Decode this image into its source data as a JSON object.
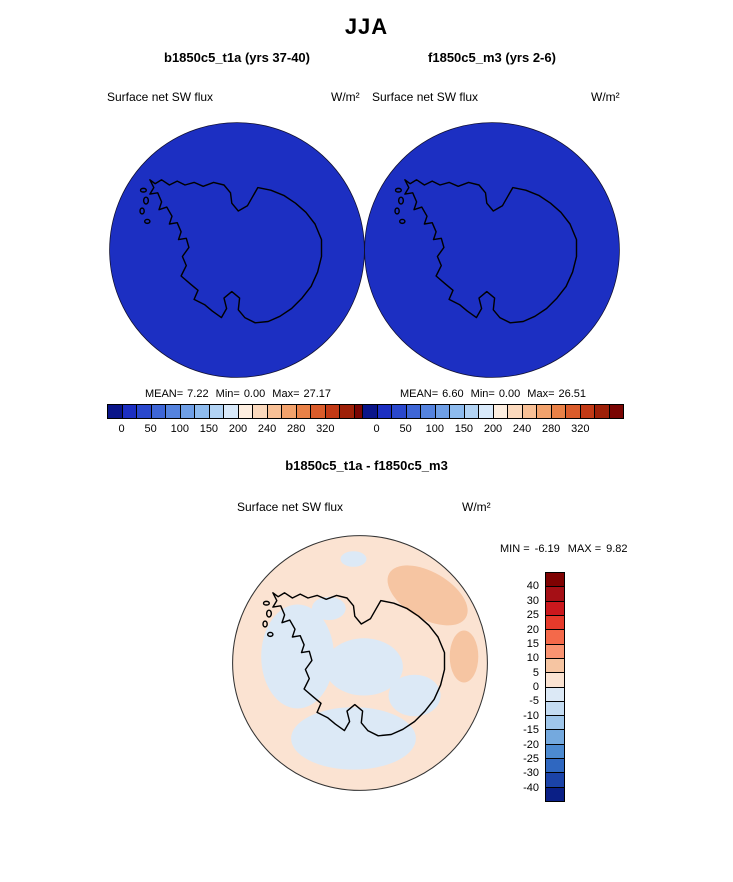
{
  "title": "JJA",
  "panels": [
    {
      "header": "b1850c5_t1a (yrs 37-40)",
      "field_label": "Surface net SW flux",
      "units": "W/m²",
      "stats": {
        "mean_label": "MEAN=",
        "mean_value": "7.22",
        "min_label": "Min=",
        "min_value": "0.00",
        "max_label": "Max=",
        "max_value": "27.17"
      }
    },
    {
      "header": "f1850c5_m3 (yrs 2-6)",
      "field_label": "Surface net SW flux",
      "units": "W/m²",
      "stats": {
        "mean_label": "MEAN=",
        "mean_value": "6.60",
        "min_label": "Min=",
        "min_value": "0.00",
        "max_label": "Max=",
        "max_value": "26.51"
      }
    }
  ],
  "diff_panel": {
    "header": "b1850c5_t1a - f1850c5_m3",
    "field_label": "Surface net SW flux",
    "units": "W/m²",
    "min_label": "MIN =",
    "min_value": "-6.19",
    "max_label": "MAX =",
    "max_value": "9.82"
  },
  "colorbar_top": {
    "ticks": [
      "0",
      "50",
      "100",
      "150",
      "200",
      "240",
      "280",
      "320"
    ],
    "colors": [
      "#0a1589",
      "#1c2fc2",
      "#2a48cd",
      "#3e66d6",
      "#5583de",
      "#6f9fe6",
      "#8ebbee",
      "#b2d3f4",
      "#d8e9fa",
      "#fdeee0",
      "#fbd9bd",
      "#f8c096",
      "#f2a26c",
      "#e98147",
      "#da5c2b",
      "#c23a16",
      "#9e2008",
      "#7a0503"
    ]
  },
  "colorbar_diff": {
    "ticks": [
      "40",
      "30",
      "25",
      "20",
      "15",
      "10",
      "5",
      "0",
      "-5",
      "-10",
      "-15",
      "-20",
      "-25",
      "-30",
      "-40"
    ],
    "colors": [
      "#7f0202",
      "#a50f15",
      "#cb181d",
      "#e63a2b",
      "#f4694a",
      "#f99371",
      "#f6c5a2",
      "#fbe3d2",
      "#dce9f6",
      "#c4dcf2",
      "#9fc6ea",
      "#74a9de",
      "#4c8ad0",
      "#2f67c0",
      "#1b43a8",
      "#0a1f86"
    ]
  },
  "map_colors": {
    "ocean_top": "#1c2fc2",
    "diff_bg": "#fbe3d2",
    "diff_neg": "#dce9f6",
    "diff_pos": "#f6c5a2",
    "coast": "#000000"
  },
  "chart_data": [
    {
      "type": "heatmap",
      "title": "b1850c5_t1a (yrs 37-40)",
      "season": "JJA",
      "variable": "Surface net SW flux",
      "units": "W/m²",
      "projection": "south polar stereographic (Antarctica)",
      "stats": {
        "mean": 7.22,
        "min": 0.0,
        "max": 27.17
      },
      "colorbar_ticks": [
        0,
        50,
        100,
        150,
        200,
        240,
        280,
        320
      ],
      "legend_position": "bottom",
      "notes": "Field nearly uniform at low values; entire map rendered in the 0-25 blue bin"
    },
    {
      "type": "heatmap",
      "title": "f1850c5_m3 (yrs 2-6)",
      "season": "JJA",
      "variable": "Surface net SW flux",
      "units": "W/m²",
      "projection": "south polar stereographic (Antarctica)",
      "stats": {
        "mean": 6.6,
        "min": 0.0,
        "max": 26.51
      },
      "colorbar_ticks": [
        0,
        50,
        100,
        150,
        200,
        240,
        280,
        320
      ],
      "legend_position": "bottom",
      "notes": "Field nearly uniform at low values; entire map rendered in the 0-25 blue bin"
    },
    {
      "type": "heatmap",
      "title": "b1850c5_t1a - f1850c5_m3",
      "season": "JJA",
      "variable": "Surface net SW flux",
      "units": "W/m²",
      "projection": "south polar stereographic (Antarctica)",
      "stats": {
        "min": -6.19,
        "max": 9.82
      },
      "colorbar_ticks": [
        40,
        30,
        25,
        20,
        15,
        10,
        5,
        0,
        -5,
        -10,
        -15,
        -20,
        -25,
        -30,
        -40
      ],
      "legend_position": "right",
      "notes": "Difference field mostly in the -5 to +10 range: pale orange background with pale blue patches and a stronger orange patch at upper right"
    }
  ]
}
